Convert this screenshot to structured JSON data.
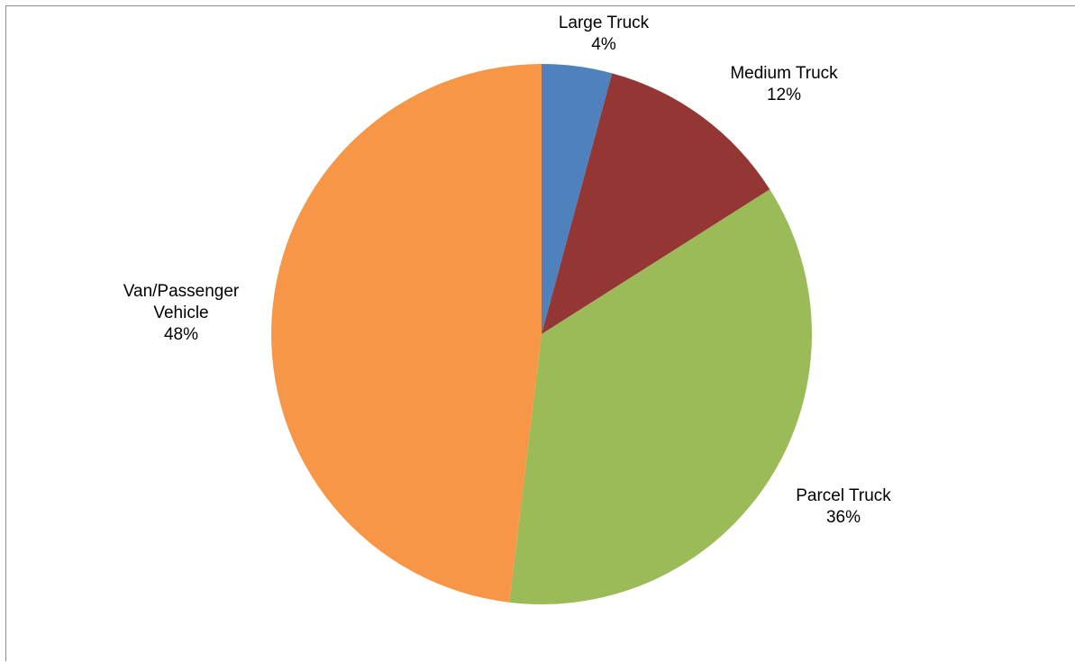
{
  "chart_data": {
    "type": "pie",
    "title": "",
    "start_angle_deg": 0,
    "direction": "clockwise",
    "slices": [
      {
        "label_lines": [
          "Large Truck"
        ],
        "name": "Large Truck",
        "percent_text": "4%",
        "value": 4.2,
        "color": "#4F81BD"
      },
      {
        "label_lines": [
          "Medium Truck"
        ],
        "name": "Medium Truck",
        "percent_text": "12%",
        "value": 11.8,
        "color": "#943634"
      },
      {
        "label_lines": [
          "Parcel Truck"
        ],
        "name": "Parcel Truck",
        "percent_text": "36%",
        "value": 35.9,
        "color": "#9BBB59"
      },
      {
        "label_lines": [
          "Van/Passenger",
          "Vehicle"
        ],
        "name": "Van/Passenger Vehicle",
        "percent_text": "48%",
        "value": 48.1,
        "color": "#F79646"
      }
    ],
    "legend": "none",
    "data_labels": "outside-end"
  }
}
